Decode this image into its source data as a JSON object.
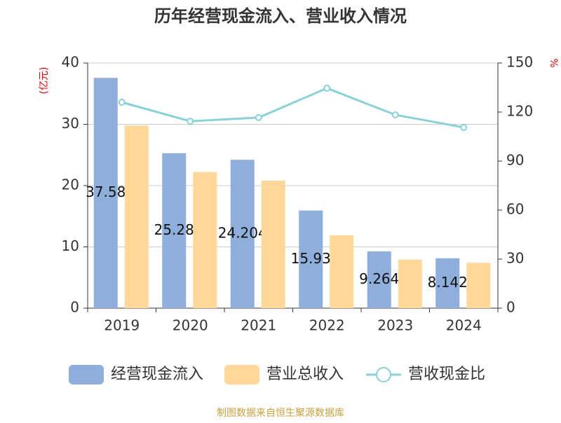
{
  "chart_data": {
    "type": "bar_line",
    "title": "历年经营现金流入、营业收入情况",
    "y_label": "(亿元)",
    "y2_label": "%",
    "source": "制图数据来自恒生聚源数据库",
    "categories": [
      "2019",
      "2020",
      "2021",
      "2022",
      "2023",
      "2024"
    ],
    "series": [
      {
        "name": "经营现金流入",
        "type": "bar",
        "color": "#8eaedb",
        "values": [
          37.58,
          25.28,
          24.204,
          15.93,
          9.264,
          8.142
        ],
        "labels": true
      },
      {
        "name": "营业总收入",
        "type": "bar",
        "color": "#ffd899",
        "values": [
          29.8,
          22.2,
          20.8,
          11.9,
          7.9,
          7.4
        ]
      },
      {
        "name": "营收现金比",
        "type": "line",
        "axis": "y2",
        "color": "#88d1d6",
        "values": [
          126,
          114.4,
          116.6,
          134.6,
          118.3,
          110.6
        ]
      }
    ],
    "ylim": [
      0,
      40
    ],
    "yticks": [
      0,
      10,
      20,
      30,
      40
    ],
    "y2lim": [
      0,
      150
    ],
    "y2ticks": [
      0,
      30,
      60,
      90,
      120,
      150
    ],
    "grid": true
  }
}
